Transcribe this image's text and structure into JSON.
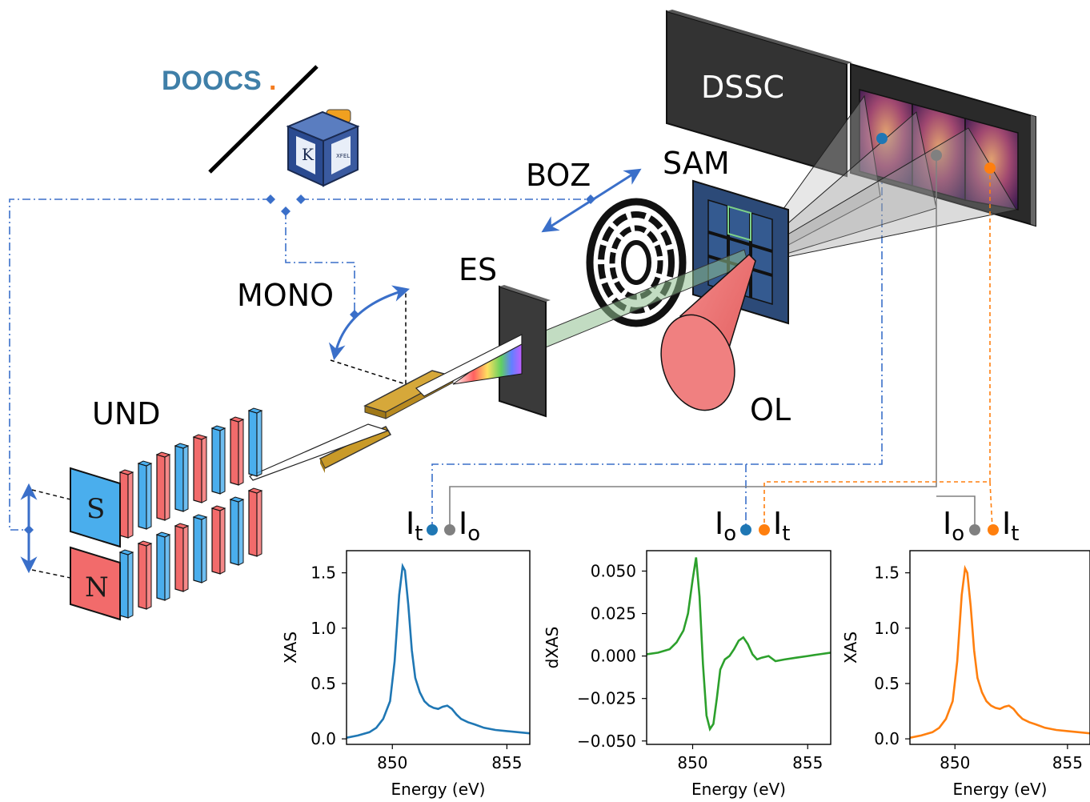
{
  "labels": {
    "doocs": "DOOCS",
    "doocs_dot": ".",
    "karabo_k": "K",
    "karabo_xfel": "XFEL",
    "dssc": "DSSC",
    "boz": "BOZ",
    "sam": "SAM",
    "es": "ES",
    "mono": "MONO",
    "ol": "OL",
    "und": "UND",
    "magnet_s": "S",
    "magnet_n": "N"
  },
  "signals": {
    "group1": [
      {
        "main": "I",
        "sub": "t"
      },
      {
        "main": "I",
        "sub": "o"
      }
    ],
    "group2": [
      {
        "main": "I",
        "sub": "o"
      },
      {
        "main": "I",
        "sub": "t"
      }
    ],
    "group3": [
      {
        "main": "I",
        "sub": "o"
      },
      {
        "main": "I",
        "sub": "t"
      }
    ]
  },
  "colors": {
    "blue": "#1f77b4",
    "green": "#2ca02c",
    "orange": "#ff7f0e",
    "gray": "#808080",
    "control": "#3a6fc9",
    "magnet_red": "#f26b6b",
    "magnet_blue": "#4aaeed",
    "doocs_text": "#3f7fa8",
    "doocs_dot": "#f47c20"
  },
  "chart_data": [
    {
      "type": "line",
      "title": "",
      "xlabel": "Energy (eV)",
      "ylabel": "XAS",
      "xlim": [
        848,
        856
      ],
      "ylim": [
        -0.05,
        1.7
      ],
      "xticks": [
        850,
        855
      ],
      "yticks": [
        "0.0",
        "0.5",
        "1.0",
        "1.5"
      ],
      "ytick_values": [
        0.0,
        0.5,
        1.0,
        1.5
      ],
      "series": [
        {
          "color": "#1f77b4",
          "x": [
            848,
            848.5,
            849,
            849.3,
            849.6,
            849.9,
            850.1,
            850.3,
            850.45,
            850.55,
            850.7,
            850.85,
            851.0,
            851.2,
            851.4,
            851.6,
            851.8,
            852.0,
            852.2,
            852.4,
            852.6,
            852.8,
            853.0,
            853.3,
            853.6,
            854.0,
            854.5,
            855.0,
            855.5,
            856
          ],
          "y": [
            0.01,
            0.03,
            0.06,
            0.1,
            0.18,
            0.34,
            0.7,
            1.3,
            1.56,
            1.52,
            1.2,
            0.8,
            0.55,
            0.42,
            0.34,
            0.3,
            0.28,
            0.27,
            0.29,
            0.3,
            0.27,
            0.22,
            0.18,
            0.15,
            0.13,
            0.1,
            0.08,
            0.07,
            0.06,
            0.05
          ]
        }
      ]
    },
    {
      "type": "line",
      "title": "",
      "xlabel": "Energy (eV)",
      "ylabel": "dXAS",
      "xlim": [
        848,
        856
      ],
      "ylim": [
        -0.052,
        0.062
      ],
      "xticks": [
        850,
        855
      ],
      "yticks": [
        "0.050",
        "0.025",
        "0.000",
        "−0.025",
        "−0.050"
      ],
      "ytick_values": [
        0.05,
        0.025,
        0.0,
        -0.025,
        -0.05
      ],
      "series": [
        {
          "color": "#2ca02c",
          "x": [
            848,
            848.5,
            849,
            849.3,
            849.6,
            849.8,
            850.0,
            850.15,
            850.3,
            850.45,
            850.6,
            850.75,
            850.9,
            851.05,
            851.2,
            851.4,
            851.6,
            851.8,
            852.0,
            852.2,
            852.4,
            852.6,
            852.8,
            853.0,
            853.3,
            853.6,
            854.0,
            854.5,
            855.0,
            855.5,
            856
          ],
          "y": [
            0.001,
            0.002,
            0.004,
            0.008,
            0.015,
            0.025,
            0.045,
            0.058,
            0.035,
            -0.005,
            -0.035,
            -0.043,
            -0.04,
            -0.025,
            -0.008,
            -0.002,
            0.0,
            0.004,
            0.009,
            0.011,
            0.007,
            0.001,
            -0.002,
            -0.001,
            0.0,
            -0.003,
            -0.002,
            -0.001,
            0.0,
            0.001,
            0.002
          ]
        }
      ]
    },
    {
      "type": "line",
      "title": "",
      "xlabel": "Energy (eV)",
      "ylabel": "XAS",
      "xlim": [
        848,
        856
      ],
      "ylim": [
        -0.05,
        1.7
      ],
      "xticks": [
        850,
        855
      ],
      "yticks": [
        "0.0",
        "0.5",
        "1.0",
        "1.5"
      ],
      "ytick_values": [
        0.0,
        0.5,
        1.0,
        1.5
      ],
      "series": [
        {
          "color": "#ff7f0e",
          "x": [
            848,
            848.5,
            849,
            849.3,
            849.6,
            849.9,
            850.1,
            850.3,
            850.45,
            850.55,
            850.7,
            850.85,
            851.0,
            851.2,
            851.4,
            851.6,
            851.8,
            852.0,
            852.2,
            852.4,
            852.6,
            852.8,
            853.0,
            853.3,
            853.6,
            854.0,
            854.5,
            855.0,
            855.5,
            856
          ],
          "y": [
            0.01,
            0.03,
            0.06,
            0.1,
            0.18,
            0.34,
            0.7,
            1.3,
            1.54,
            1.5,
            1.2,
            0.8,
            0.55,
            0.42,
            0.34,
            0.3,
            0.28,
            0.27,
            0.29,
            0.3,
            0.27,
            0.22,
            0.18,
            0.15,
            0.13,
            0.1,
            0.08,
            0.07,
            0.06,
            0.05
          ]
        }
      ]
    }
  ]
}
